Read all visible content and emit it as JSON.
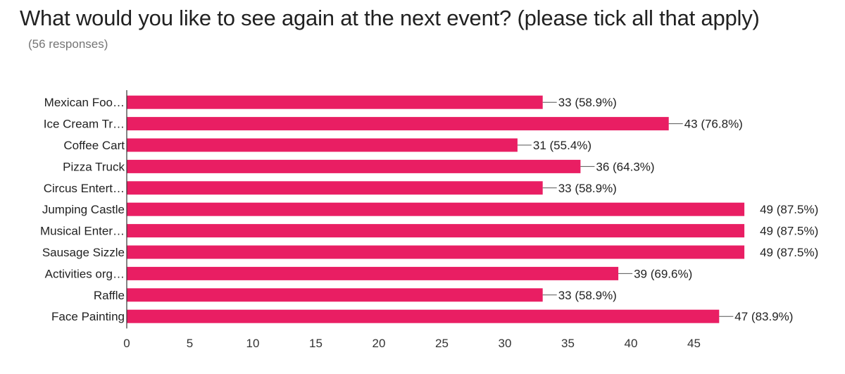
{
  "title": "What would you like to see again at the next event? (please tick all that apply)",
  "subtitle": "(56 responses)",
  "chart_data": {
    "type": "bar",
    "orientation": "horizontal",
    "categories": [
      "Mexican Foo…",
      "Ice Cream Tr…",
      "Coffee Cart",
      "Pizza Truck",
      "Circus Entert…",
      "Jumping Castle",
      "Musical Enter…",
      "Sausage Sizzle",
      "Activities org…",
      "Raffle",
      "Face Painting"
    ],
    "values": [
      33,
      43,
      31,
      36,
      33,
      49,
      49,
      49,
      39,
      33,
      47
    ],
    "data_labels": [
      "33 (58.9%)",
      "43 (76.8%)",
      "31 (55.4%)",
      "36 (64.3%)",
      "33 (58.9%)",
      "49 (87.5%)",
      "49 (87.5%)",
      "49 (87.5%)",
      "39 (69.6%)",
      "33 (58.9%)",
      "47 (83.9%)"
    ],
    "xticks": [
      0,
      5,
      10,
      15,
      20,
      25,
      30,
      35,
      40,
      45
    ],
    "xlim": [
      0,
      49
    ],
    "xlabel": "",
    "ylabel": "",
    "grid": false,
    "legend": "none",
    "bar_color": "#e91e63"
  }
}
